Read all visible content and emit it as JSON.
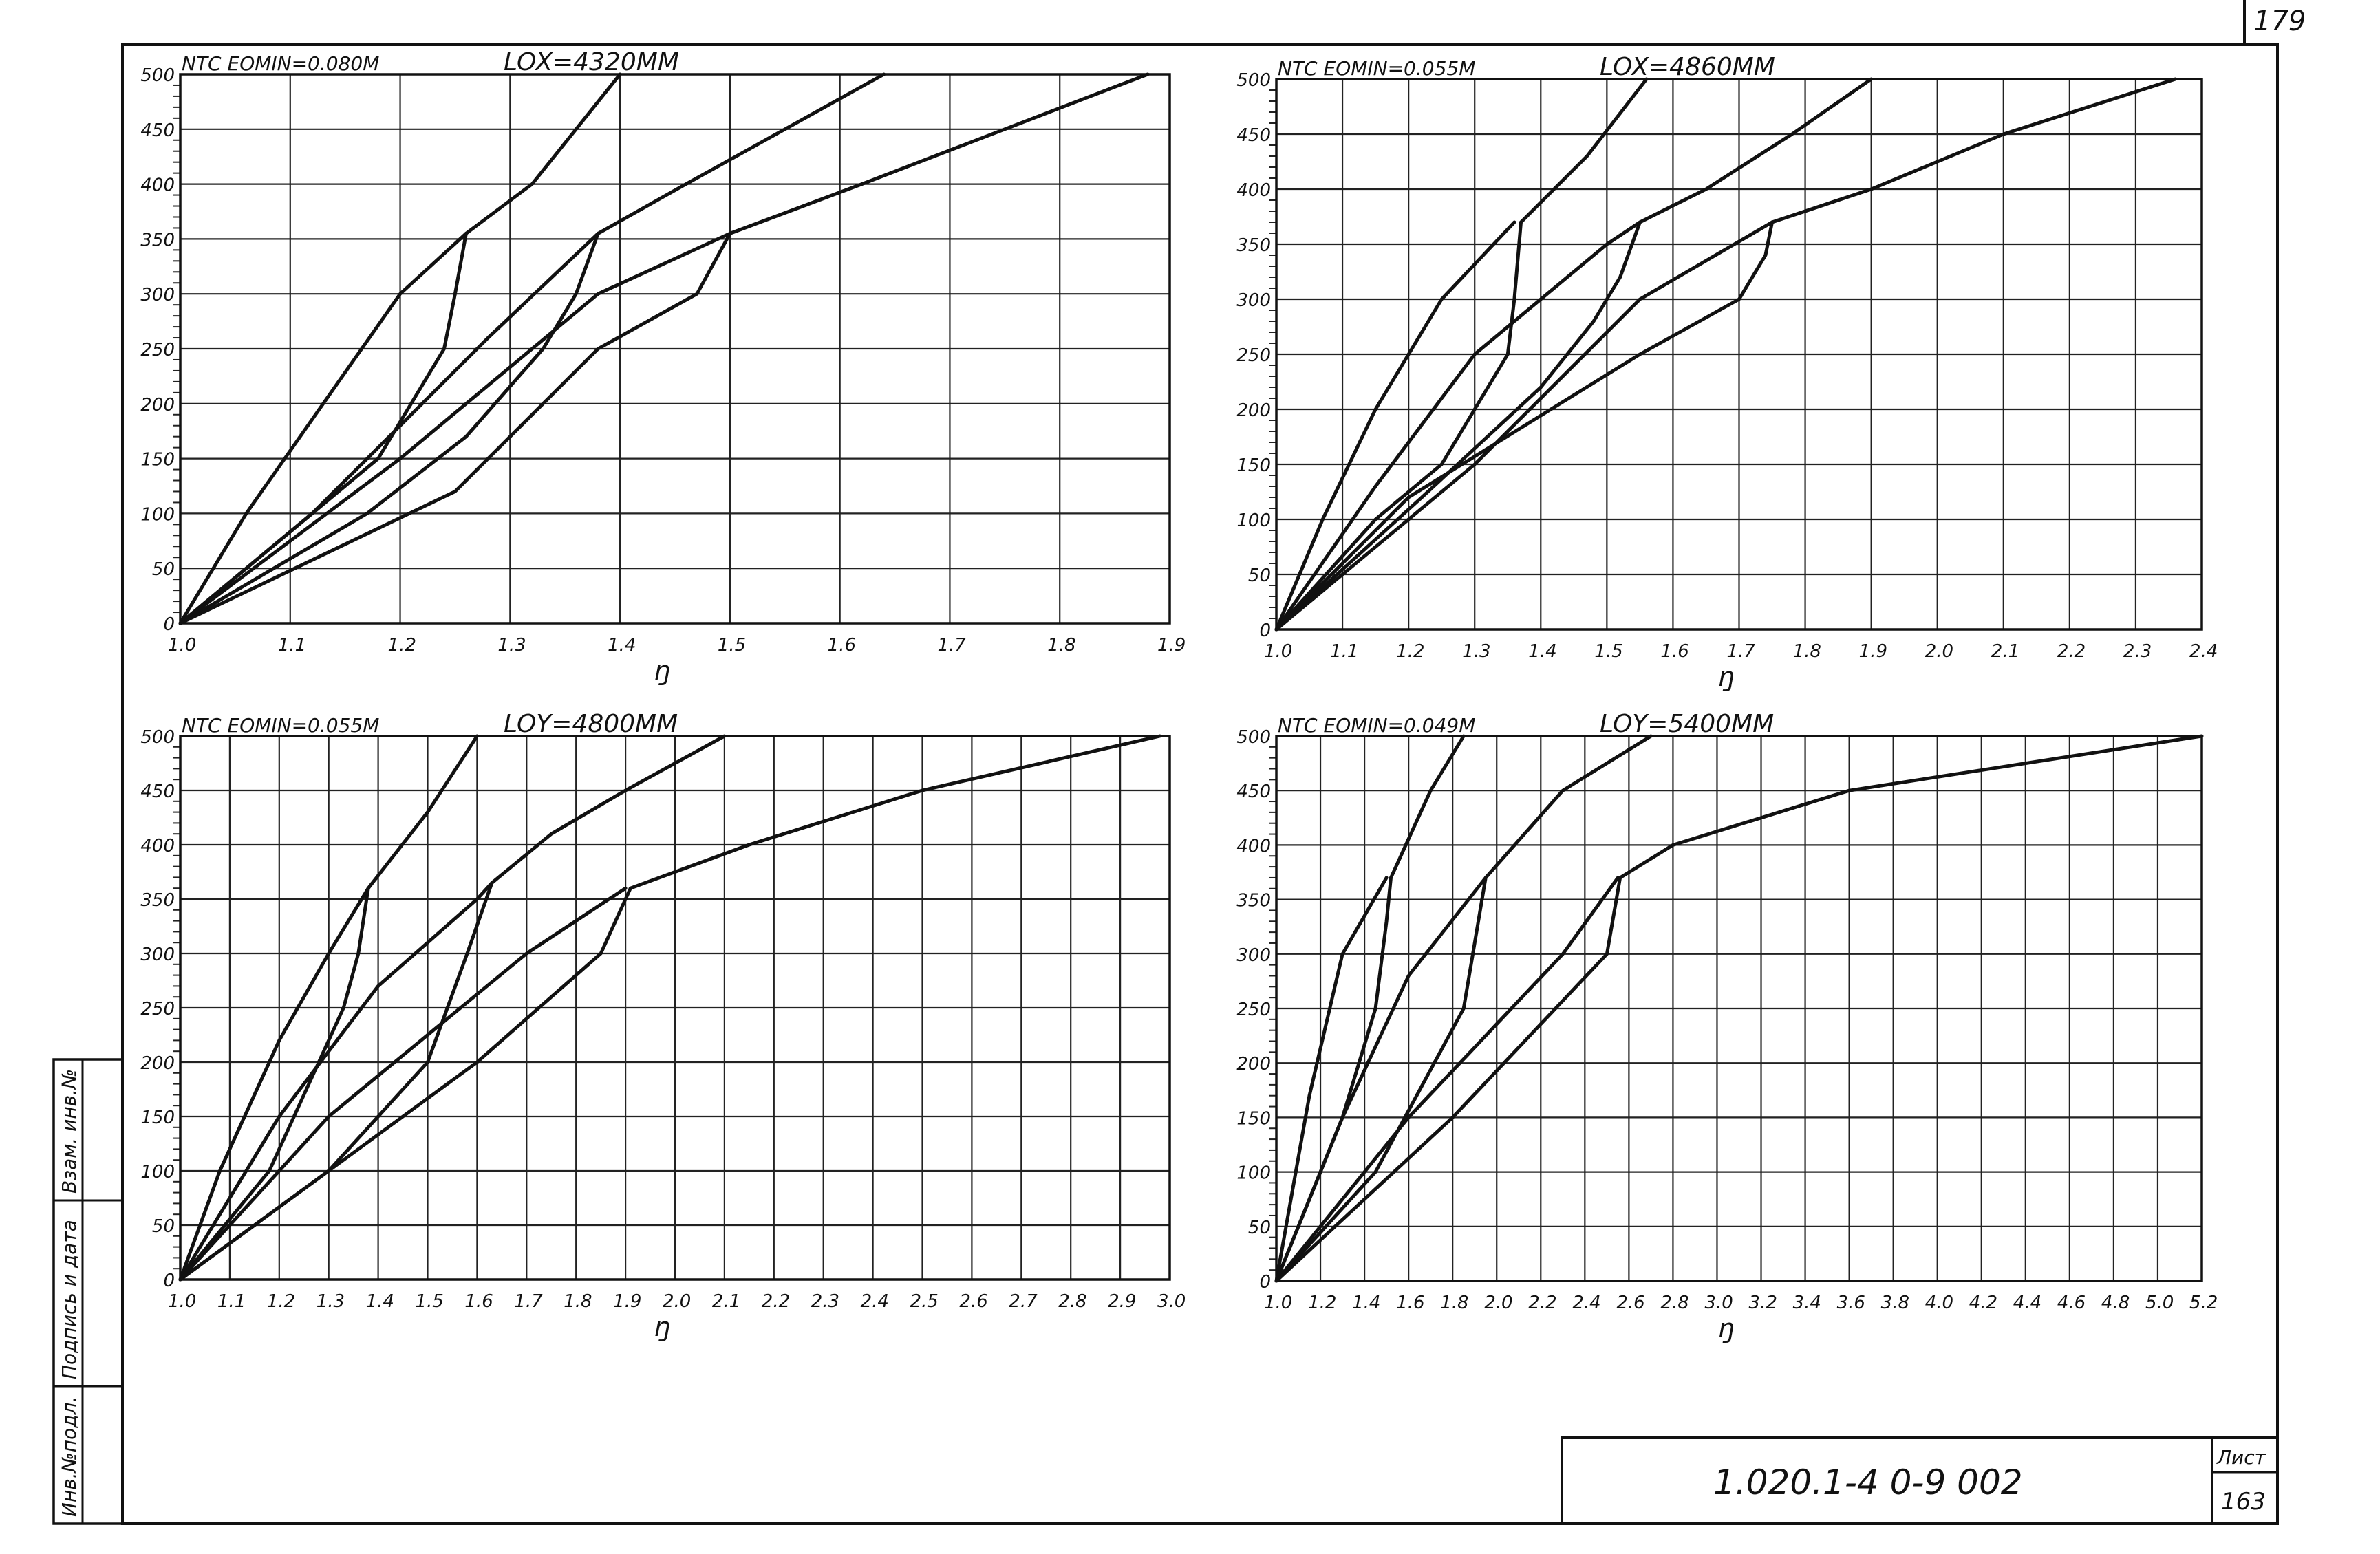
{
  "page": {
    "corner_number": "179",
    "doc_code": "1.020.1-4   0-9   002",
    "sheet_label": "Лист",
    "sheet_number": "163",
    "side_stamp": [
      "Инв.№подл.",
      "Подпись и дата",
      "Взам. инв.№"
    ]
  },
  "chart_data": [
    {
      "type": "line",
      "header": "NTC  EOMIN=0.080M",
      "title": "LOX=4320MM",
      "xlabel": "ŋ",
      "x_ticks": [
        "1.0",
        "1.1",
        "1.2",
        "1.3",
        "1.4",
        "1.5",
        "1.6",
        "1.7",
        "1.8",
        "1.9"
      ],
      "y_ticks": [
        "0",
        "50",
        "100",
        "150",
        "200",
        "250",
        "300",
        "350",
        "400",
        "450",
        "500"
      ],
      "xlim": [
        1.0,
        1.9
      ],
      "ylim": [
        0,
        500
      ],
      "series": [
        {
          "x": [
            1.0,
            1.06,
            1.13,
            1.2,
            1.26
          ],
          "y": [
            0,
            100,
            200,
            300,
            355
          ]
        },
        {
          "x": [
            1.0,
            1.12,
            1.18,
            1.21,
            1.24,
            1.25,
            1.26
          ],
          "y": [
            0,
            100,
            150,
            200,
            250,
            300,
            355
          ]
        },
        {
          "x": [
            1.26,
            1.32,
            1.4
          ],
          "y": [
            355,
            400,
            500
          ]
        },
        {
          "x": [
            1.0,
            1.12,
            1.2,
            1.28,
            1.38
          ],
          "y": [
            0,
            100,
            180,
            260,
            355
          ]
        },
        {
          "x": [
            1.0,
            1.17,
            1.26,
            1.33,
            1.36,
            1.38
          ],
          "y": [
            0,
            100,
            170,
            250,
            300,
            355
          ]
        },
        {
          "x": [
            1.38,
            1.46,
            1.55,
            1.64
          ],
          "y": [
            355,
            400,
            450,
            500
          ]
        },
        {
          "x": [
            1.0,
            1.2,
            1.38,
            1.5
          ],
          "y": [
            0,
            150,
            300,
            355
          ]
        },
        {
          "x": [
            1.0,
            1.25,
            1.38,
            1.47,
            1.5
          ],
          "y": [
            0,
            120,
            250,
            300,
            355
          ]
        },
        {
          "x": [
            1.5,
            1.62,
            1.75,
            1.88
          ],
          "y": [
            355,
            400,
            450,
            500
          ]
        }
      ]
    },
    {
      "type": "line",
      "header": "NTC  EOMIN=0.055M",
      "title": "LOX=4860MM",
      "xlabel": "ŋ",
      "x_ticks": [
        "1.0",
        "1.1",
        "1.2",
        "1.3",
        "1.4",
        "1.5",
        "1.6",
        "1.7",
        "1.8",
        "1.9",
        "2.0",
        "2.1",
        "2.2",
        "2.3",
        "2.4"
      ],
      "y_ticks": [
        "0",
        "50",
        "100",
        "150",
        "200",
        "250",
        "300",
        "350",
        "400",
        "450",
        "500"
      ],
      "xlim": [
        1.0,
        2.4
      ],
      "ylim": [
        0,
        500
      ],
      "series": [
        {
          "x": [
            1.0,
            1.07,
            1.15,
            1.25,
            1.36
          ],
          "y": [
            0,
            100,
            200,
            300,
            370
          ]
        },
        {
          "x": [
            1.0,
            1.15,
            1.25,
            1.3,
            1.35,
            1.36,
            1.37
          ],
          "y": [
            0,
            100,
            150,
            200,
            250,
            300,
            370
          ]
        },
        {
          "x": [
            1.37,
            1.47,
            1.56
          ],
          "y": [
            370,
            430,
            500
          ]
        },
        {
          "x": [
            1.0,
            1.15,
            1.3,
            1.5,
            1.55
          ],
          "y": [
            0,
            130,
            250,
            350,
            370
          ]
        },
        {
          "x": [
            1.0,
            1.22,
            1.4,
            1.48,
            1.52,
            1.55
          ],
          "y": [
            0,
            120,
            220,
            280,
            320,
            370
          ]
        },
        {
          "x": [
            1.55,
            1.65,
            1.78,
            1.9
          ],
          "y": [
            370,
            400,
            450,
            500
          ]
        },
        {
          "x": [
            1.0,
            1.3,
            1.55,
            1.75
          ],
          "y": [
            0,
            150,
            300,
            370
          ]
        },
        {
          "x": [
            1.0,
            1.2,
            1.55,
            1.7,
            1.74,
            1.75
          ],
          "y": [
            0,
            120,
            250,
            300,
            340,
            370
          ]
        },
        {
          "x": [
            1.75,
            1.9,
            2.1,
            2.36
          ],
          "y": [
            370,
            400,
            450,
            500
          ]
        }
      ]
    },
    {
      "type": "line",
      "header": "NTC  EOMIN=0.055M",
      "title": "LOY=4800MM",
      "xlabel": "ŋ",
      "x_ticks": [
        "1.0",
        "1.1",
        "1.2",
        "1.3",
        "1.4",
        "1.5",
        "1.6",
        "1.7",
        "1.8",
        "1.9",
        "2.0",
        "2.1",
        "2.2",
        "2.3",
        "2.4",
        "2.5",
        "2.6",
        "2.7",
        "2.8",
        "2.9",
        "3.0"
      ],
      "y_ticks": [
        "0",
        "50",
        "100",
        "150",
        "200",
        "250",
        "300",
        "350",
        "400",
        "450",
        "500"
      ],
      "xlim": [
        1.0,
        3.0
      ],
      "ylim": [
        0,
        500
      ],
      "series": [
        {
          "x": [
            1.0,
            1.08,
            1.2,
            1.3,
            1.38
          ],
          "y": [
            0,
            100,
            220,
            300,
            360
          ]
        },
        {
          "x": [
            1.0,
            1.18,
            1.28,
            1.33,
            1.36,
            1.38
          ],
          "y": [
            0,
            100,
            200,
            250,
            300,
            360
          ]
        },
        {
          "x": [
            1.38,
            1.5,
            1.6
          ],
          "y": [
            360,
            430,
            500
          ]
        },
        {
          "x": [
            1.0,
            1.2,
            1.4,
            1.6,
            1.63
          ],
          "y": [
            0,
            150,
            270,
            350,
            365
          ]
        },
        {
          "x": [
            1.0,
            1.3,
            1.5,
            1.58,
            1.63
          ],
          "y": [
            0,
            100,
            200,
            300,
            365
          ]
        },
        {
          "x": [
            1.63,
            1.75,
            1.9,
            2.1
          ],
          "y": [
            365,
            410,
            450,
            500
          ]
        },
        {
          "x": [
            1.0,
            1.3,
            1.7,
            1.9
          ],
          "y": [
            0,
            150,
            300,
            360
          ]
        },
        {
          "x": [
            1.0,
            1.6,
            1.85,
            1.91
          ],
          "y": [
            0,
            200,
            300,
            360
          ]
        },
        {
          "x": [
            1.91,
            2.15,
            2.5,
            2.98
          ],
          "y": [
            360,
            400,
            450,
            500
          ]
        }
      ]
    },
    {
      "type": "line",
      "header": "NTC  EOMIN=0.049M",
      "title": "LOY=5400MM",
      "xlabel": "ŋ",
      "x_ticks": [
        "1.0",
        "1.2",
        "1.4",
        "1.6",
        "1.8",
        "2.0",
        "2.2",
        "2.4",
        "2.6",
        "2.8",
        "3.0",
        "3.2",
        "3.4",
        "3.6",
        "3.8",
        "4.0",
        "4.2",
        "4.4",
        "4.6",
        "4.8",
        "5.0",
        "5.2"
      ],
      "y_ticks": [
        "0",
        "50",
        "100",
        "150",
        "200",
        "250",
        "300",
        "350",
        "400",
        "450",
        "500"
      ],
      "xlim": [
        1.0,
        5.2
      ],
      "ylim": [
        0,
        500
      ],
      "series": [
        {
          "x": [
            1.0,
            1.15,
            1.3,
            1.5
          ],
          "y": [
            0,
            170,
            300,
            370
          ]
        },
        {
          "x": [
            1.0,
            1.3,
            1.45,
            1.5,
            1.52
          ],
          "y": [
            0,
            150,
            250,
            330,
            370
          ]
        },
        {
          "x": [
            1.52,
            1.7,
            1.85
          ],
          "y": [
            370,
            450,
            500
          ]
        },
        {
          "x": [
            1.0,
            1.3,
            1.6,
            1.95
          ],
          "y": [
            0,
            150,
            280,
            370
          ]
        },
        {
          "x": [
            1.0,
            1.45,
            1.85,
            1.95
          ],
          "y": [
            0,
            100,
            250,
            370
          ]
        },
        {
          "x": [
            1.95,
            2.3,
            2.7
          ],
          "y": [
            370,
            450,
            500
          ]
        },
        {
          "x": [
            1.0,
            1.6,
            2.3,
            2.55
          ],
          "y": [
            0,
            150,
            300,
            370
          ]
        },
        {
          "x": [
            1.0,
            1.8,
            2.5,
            2.56
          ],
          "y": [
            0,
            150,
            300,
            370
          ]
        },
        {
          "x": [
            2.56,
            2.8,
            3.6,
            5.2
          ],
          "y": [
            370,
            400,
            450,
            500
          ]
        }
      ]
    }
  ]
}
